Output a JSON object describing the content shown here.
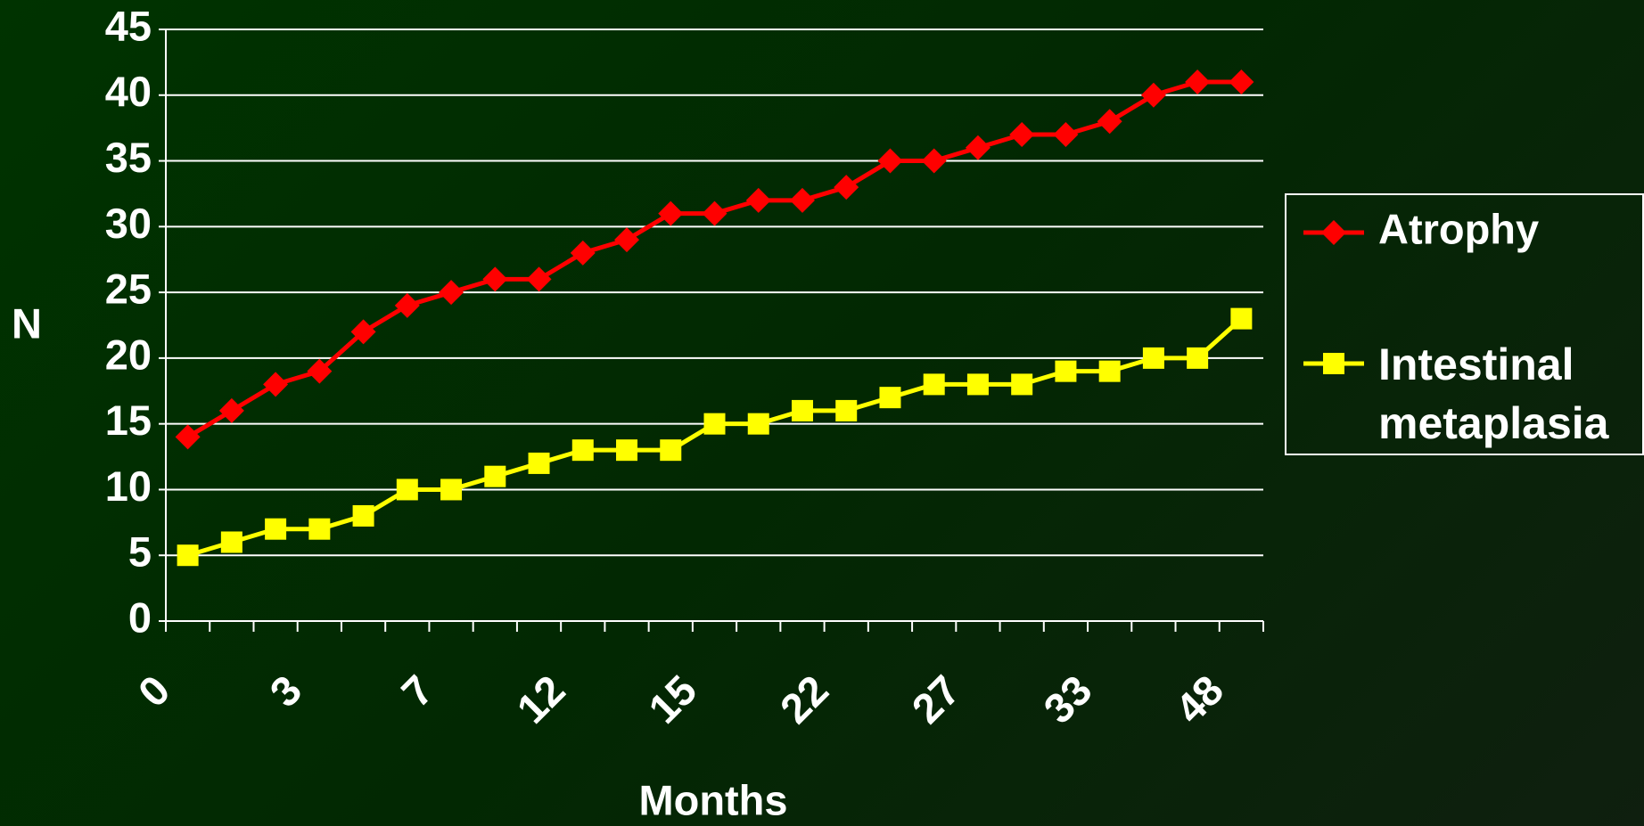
{
  "chart_data": {
    "type": "line",
    "x_label": "Months",
    "y_label": "N",
    "categories": [
      "0",
      null,
      null,
      "3",
      null,
      null,
      "7",
      null,
      null,
      "12",
      null,
      null,
      "15",
      null,
      null,
      "22",
      null,
      null,
      "27",
      null,
      null,
      "33",
      null,
      null,
      "48"
    ],
    "series": [
      {
        "name": "Atrophy",
        "color": "#ff0000",
        "marker": "diamond",
        "values": [
          14,
          16,
          18,
          19,
          22,
          24,
          25,
          26,
          26,
          28,
          29,
          31,
          31,
          32,
          32,
          33,
          35,
          35,
          36,
          37,
          37,
          38,
          40,
          41,
          41
        ]
      },
      {
        "name": "Intestinal metaplasia",
        "color": "#ffff00",
        "marker": "square",
        "values": [
          5,
          6,
          7,
          7,
          8,
          10,
          10,
          11,
          12,
          13,
          13,
          13,
          15,
          15,
          16,
          16,
          17,
          18,
          18,
          18,
          19,
          19,
          20,
          20,
          23
        ]
      }
    ],
    "ylim": [
      0,
      45
    ],
    "yticks": [
      0,
      5,
      10,
      15,
      20,
      25,
      30,
      35,
      40,
      45
    ],
    "grid": true,
    "legend": "right"
  }
}
